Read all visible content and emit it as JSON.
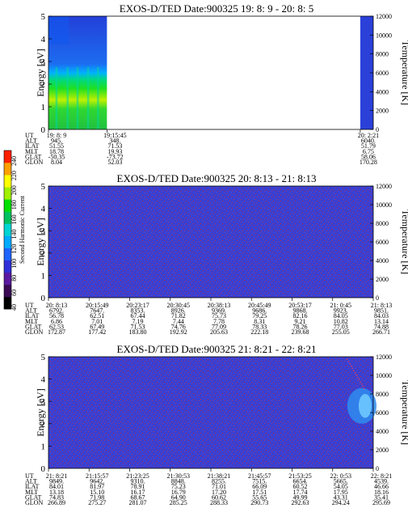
{
  "chart_data": [
    {
      "type": "heatmap",
      "title": "EXOS-D/TED   Date:900325  19: 8: 9 - 20: 8: 5",
      "ylabel": "Energy [eV]",
      "y2label": "Temperature [K]",
      "ylim": [
        0,
        5
      ],
      "y2lim": [
        0,
        12000
      ],
      "yticks": [
        "0",
        "1",
        "2",
        "3",
        "4",
        "5"
      ],
      "y2ticks": [
        "0",
        "2000",
        "4000",
        "6000",
        "8000",
        "10000",
        "12000"
      ],
      "data_segments": [
        {
          "start_frac": 0.0,
          "end_frac": 0.18,
          "pattern": "low-energy green/yellow enhancement below ~2.5 eV, blue above"
        },
        {
          "start_frac": 0.96,
          "end_frac": 1.0,
          "pattern": "blue"
        }
      ],
      "orbit_table": {
        "labels": [
          "UT",
          "ALT",
          "ILAT",
          "MLT",
          "GLAT",
          "GLON"
        ],
        "columns": [
          {
            "pos": 0.0,
            "values": [
              "19: 8: 9",
              "945.",
              "51.55",
              "18.78",
              "-50.35",
              "8.04"
            ]
          },
          {
            "pos": 0.18,
            "values": [
              "19:15:45",
              "348.",
              "71.53",
              "19.93",
              "-73.72",
              "52.03"
            ]
          },
          {
            "pos": 0.96,
            "values": [
              "20: 2:21",
              "6040.",
              "51.79",
              "6.75",
              "58.06",
              "170.28"
            ]
          }
        ]
      }
    },
    {
      "type": "heatmap",
      "title": "EXOS-D/TED   Date:900325  20: 8:13 - 21: 8:13",
      "ylabel": "Energy [eV]",
      "y2label": "Temperature [K]",
      "ylim": [
        0,
        5
      ],
      "y2lim": [
        0,
        12000
      ],
      "yticks": [
        "0",
        "1",
        "2",
        "3",
        "4",
        "5"
      ],
      "y2ticks": [
        "0",
        "2000",
        "4000",
        "6000",
        "8000",
        "10000",
        "12000"
      ],
      "data_segments": [
        {
          "start_frac": 0.0,
          "end_frac": 1.0,
          "pattern": "blue with red speckle noise"
        }
      ],
      "orbit_table": {
        "labels": [
          "UT",
          "ALT",
          "ILAT",
          "MLT",
          "GLAT",
          "GLON"
        ],
        "columns": [
          {
            "pos": 0.0,
            "values": [
              "20: 8:13",
              "6792.",
              "56.78",
              "6.86",
              "62.53",
              "172.87"
            ]
          },
          {
            "pos": 0.125,
            "values": [
              "20:15:49",
              "7647.",
              "62.51",
              "7.01",
              "67.49",
              "177.42"
            ]
          },
          {
            "pos": 0.25,
            "values": [
              "20:23:17",
              "8353.",
              "67.44",
              "7.19",
              "71.53",
              "183.80"
            ]
          },
          {
            "pos": 0.375,
            "values": [
              "20:30:45",
              "8926.",
              "71.82",
              "7.44",
              "74.76",
              "192.92"
            ]
          },
          {
            "pos": 0.5,
            "values": [
              "20:38:13",
              "9369.",
              "75.73",
              "7.78",
              "77.09",
              "205.63"
            ]
          },
          {
            "pos": 0.625,
            "values": [
              "20:45:49",
              "9686.",
              "79.25",
              "8.31",
              "78.33",
              "222.18"
            ]
          },
          {
            "pos": 0.75,
            "values": [
              "20:53:17",
              "9868.",
              "82.16",
              "9.21",
              "78.26",
              "239.68"
            ]
          },
          {
            "pos": 0.875,
            "values": [
              "21: 0:45",
              "9923.",
              "84.05",
              "10.82",
              "77.03",
              "255.05"
            ]
          },
          {
            "pos": 1.0,
            "values": [
              "21: 8:13",
              "9851.",
              "84.03",
              "13.14",
              "74.88",
              "266.71"
            ]
          }
        ]
      }
    },
    {
      "type": "heatmap",
      "title": "EXOS-D/TED   Date:900325  21: 8:21 - 22: 8:21",
      "ylabel": "Energy [eV]",
      "y2label": "Temperature [K]",
      "ylim": [
        0,
        5
      ],
      "y2lim": [
        0,
        12000
      ],
      "yticks": [
        "0",
        "1",
        "2",
        "3",
        "4",
        "5"
      ],
      "y2ticks": [
        "0",
        "2000",
        "4000",
        "6000",
        "8000",
        "10000",
        "12000"
      ],
      "data_segments": [
        {
          "start_frac": 0.0,
          "end_frac": 1.0,
          "pattern": "blue with red speckle noise; light-blue patch near 2-3.5 eV at end of interval"
        }
      ],
      "orbit_table": {
        "labels": [
          "UT",
          "ALT",
          "ILAT",
          "MLT",
          "GLAT",
          "GLON"
        ],
        "columns": [
          {
            "pos": 0.0,
            "values": [
              "21: 8:21",
              "9849.",
              "84.01",
              "13.18",
              "74.83",
              "266.89"
            ]
          },
          {
            "pos": 0.125,
            "values": [
              "21:15:57",
              "9642.",
              "81.97",
              "15.10",
              "71.98",
              "275.27"
            ]
          },
          {
            "pos": 0.25,
            "values": [
              "21:23:25",
              "9310.",
              "78.91",
              "16.17",
              "68.67",
              "281.07"
            ]
          },
          {
            "pos": 0.375,
            "values": [
              "21:30:53",
              "8848.",
              "75.23",
              "16.79",
              "64.90",
              "285.25"
            ]
          },
          {
            "pos": 0.5,
            "values": [
              "21:38:21",
              "8255.",
              "71.01",
              "17.20",
              "60.62",
              "288.33"
            ]
          },
          {
            "pos": 0.625,
            "values": [
              "21:45:57",
              "7515.",
              "66.09",
              "17.51",
              "55.65",
              "290.73"
            ]
          },
          {
            "pos": 0.75,
            "values": [
              "21:53:25",
              "6654.",
              "60.52",
              "17.74",
              "49.99",
              "292.63"
            ]
          },
          {
            "pos": 0.875,
            "values": [
              "22: 0:53",
              "5665.",
              "54.05",
              "17.95",
              "43.31",
              "294.24"
            ]
          },
          {
            "pos": 1.0,
            "values": [
              "22: 8:21",
              "4539.",
              "46.66",
              "18.16",
              "35.41",
              "295.69"
            ]
          }
        ]
      }
    }
  ],
  "colorbar": {
    "label": "Second Harmonic Current",
    "ticks": [
      "40",
      "60",
      "80",
      "100",
      "120",
      "140",
      "160",
      "180",
      "200",
      "220",
      "240"
    ],
    "colors": [
      "#000000",
      "#3a0a55",
      "#5a1aa0",
      "#2f2fd8",
      "#1e64ff",
      "#00aaff",
      "#00d4d4",
      "#00c060",
      "#00e000",
      "#a0f000",
      "#ffff00",
      "#ffa000",
      "#ff2000"
    ]
  }
}
